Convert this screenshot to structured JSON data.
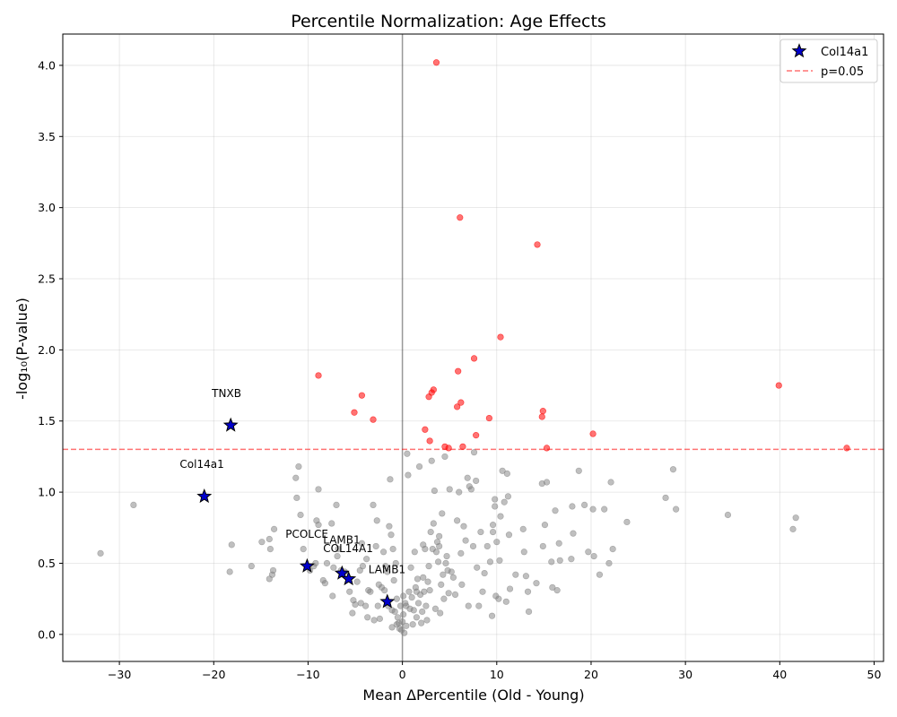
{
  "chart_data": {
    "type": "scatter",
    "title": "Percentile Normalization: Age Effects",
    "xlabel": "Mean ΔPercentile (Old - Young)",
    "ylabel": "-log₁₀(P-value)",
    "xlim": [
      -36,
      51
    ],
    "ylim": [
      -0.19,
      4.22
    ],
    "x_ticks": [
      -30,
      -20,
      -10,
      0,
      10,
      20,
      30,
      40,
      50
    ],
    "y_ticks": [
      0.0,
      0.5,
      1.0,
      1.5,
      2.0,
      2.5,
      3.0,
      3.5,
      4.0
    ],
    "x_tick_labels": [
      "−30",
      "−20",
      "−10",
      "0",
      "10",
      "20",
      "30",
      "40",
      "50"
    ],
    "y_tick_labels": [
      "0.0",
      "0.5",
      "1.0",
      "1.5",
      "2.0",
      "2.5",
      "3.0",
      "3.5",
      "4.0"
    ],
    "grid": true,
    "threshold": {
      "y": 1.301,
      "label": "p=0.05",
      "color": "#ff0000"
    },
    "zero_line_x": 0,
    "legend_position": "top-right",
    "colors": {
      "nonsig": "#808080",
      "sig": "#ff0000",
      "highlight": "#0000cc"
    },
    "series": [
      {
        "name": "",
        "role": "significant",
        "points": [
          [
            3.6,
            4.02
          ],
          [
            6.1,
            2.93
          ],
          [
            14.3,
            2.74
          ],
          [
            10.4,
            2.09
          ],
          [
            7.6,
            1.94
          ],
          [
            -8.9,
            1.82
          ],
          [
            5.9,
            1.85
          ],
          [
            39.9,
            1.75
          ],
          [
            3.3,
            1.72
          ],
          [
            3.1,
            1.7
          ],
          [
            2.8,
            1.67
          ],
          [
            -4.3,
            1.68
          ],
          [
            6.2,
            1.63
          ],
          [
            5.8,
            1.6
          ],
          [
            -5.1,
            1.56
          ],
          [
            14.9,
            1.57
          ],
          [
            14.8,
            1.53
          ],
          [
            9.2,
            1.52
          ],
          [
            -3.1,
            1.51
          ],
          [
            2.4,
            1.44
          ],
          [
            20.2,
            1.41
          ],
          [
            7.8,
            1.4
          ],
          [
            2.9,
            1.36
          ],
          [
            6.4,
            1.32
          ],
          [
            4.5,
            1.32
          ],
          [
            4.9,
            1.31
          ],
          [
            15.3,
            1.31
          ],
          [
            47.1,
            1.31
          ]
        ]
      },
      {
        "name": "",
        "role": "nonsignificant",
        "points": [
          [
            -32.0,
            0.57
          ],
          [
            -28.5,
            0.91
          ],
          [
            -18.1,
            0.63
          ],
          [
            -18.3,
            0.44
          ],
          [
            -16.0,
            0.48
          ],
          [
            -14.9,
            0.65
          ],
          [
            -14.1,
            0.67
          ],
          [
            -14.0,
            0.6
          ],
          [
            -14.1,
            0.39
          ],
          [
            -13.8,
            0.42
          ],
          [
            -13.7,
            0.45
          ],
          [
            -13.6,
            0.74
          ],
          [
            -11.2,
            0.96
          ],
          [
            -11.3,
            1.1
          ],
          [
            -11.0,
            1.18
          ],
          [
            -10.8,
            0.84
          ],
          [
            -10.5,
            0.6
          ],
          [
            -9.8,
            0.45
          ],
          [
            -9.4,
            0.48
          ],
          [
            -9.2,
            0.5
          ],
          [
            -9.1,
            0.8
          ],
          [
            -8.9,
            1.02
          ],
          [
            -8.9,
            0.77
          ],
          [
            -8.4,
            0.38
          ],
          [
            -8.2,
            0.36
          ],
          [
            -8.0,
            0.5
          ],
          [
            -7.5,
            0.78
          ],
          [
            -7.3,
            0.47
          ],
          [
            -7.4,
            0.27
          ],
          [
            -7.0,
            0.91
          ],
          [
            -6.8,
            0.6
          ],
          [
            -6.9,
            0.55
          ],
          [
            -6.5,
            0.45
          ],
          [
            -6.1,
            0.44
          ],
          [
            -5.6,
            0.3
          ],
          [
            -5.3,
            0.15
          ],
          [
            -5.2,
            0.24
          ],
          [
            -5.0,
            0.21
          ],
          [
            -4.8,
            0.37
          ],
          [
            -4.5,
            0.45
          ],
          [
            -4.4,
            0.22
          ],
          [
            -4.3,
            0.64
          ],
          [
            -4.2,
            0.48
          ],
          [
            -3.9,
            0.2
          ],
          [
            -3.7,
            0.12
          ],
          [
            -3.6,
            0.31
          ],
          [
            -3.4,
            0.3
          ],
          [
            -3.1,
            0.91
          ],
          [
            -3.0,
            0.1
          ],
          [
            -2.8,
            0.62
          ],
          [
            -2.7,
            0.8
          ],
          [
            -2.5,
            0.35
          ],
          [
            -2.4,
            0.11
          ],
          [
            -2.2,
            0.33
          ],
          [
            -2.0,
            0.58
          ],
          [
            -1.9,
            0.31
          ],
          [
            -1.8,
            0.48
          ],
          [
            -1.6,
            0.44
          ],
          [
            -1.5,
            0.2
          ],
          [
            -1.4,
            0.76
          ],
          [
            -1.3,
            1.09
          ],
          [
            -1.2,
            0.7
          ],
          [
            -1.1,
            0.05
          ],
          [
            -1.0,
            0.6
          ],
          [
            -0.9,
            0.38
          ],
          [
            -0.8,
            0.16
          ],
          [
            -0.7,
            0.5
          ],
          [
            -0.6,
            0.25
          ],
          [
            -0.5,
            0.12
          ],
          [
            -0.4,
            0.08
          ],
          [
            -0.3,
            0.04
          ],
          [
            -0.2,
            0.2
          ],
          [
            -0.1,
            0.03
          ],
          [
            0.0,
            0.09
          ],
          [
            0.1,
            0.14
          ],
          [
            0.2,
            0.01
          ],
          [
            0.3,
            0.22
          ],
          [
            0.4,
            0.06
          ],
          [
            0.5,
            1.27
          ],
          [
            0.6,
            1.12
          ],
          [
            0.7,
            0.3
          ],
          [
            0.8,
            0.18
          ],
          [
            0.9,
            0.47
          ],
          [
            1.0,
            0.26
          ],
          [
            1.1,
            0.07
          ],
          [
            1.2,
            0.17
          ],
          [
            1.3,
            0.58
          ],
          [
            1.4,
            0.33
          ],
          [
            1.5,
            0.12
          ],
          [
            1.6,
            0.39
          ],
          [
            1.7,
            0.22
          ],
          [
            1.8,
            1.18
          ],
          [
            1.9,
            0.28
          ],
          [
            2.0,
            0.08
          ],
          [
            2.1,
            0.16
          ],
          [
            2.2,
            0.63
          ],
          [
            2.3,
            0.3
          ],
          [
            2.4,
            0.6
          ],
          [
            2.5,
            0.2
          ],
          [
            2.6,
            0.1
          ],
          [
            2.7,
            0.37
          ],
          [
            2.8,
            0.48
          ],
          [
            2.9,
            0.31
          ],
          [
            3.0,
            0.72
          ],
          [
            3.1,
            1.22
          ],
          [
            3.2,
            0.6
          ],
          [
            3.3,
            0.78
          ],
          [
            3.4,
            1.01
          ],
          [
            3.5,
            0.18
          ],
          [
            3.6,
            0.58
          ],
          [
            3.7,
            0.65
          ],
          [
            3.8,
            0.51
          ],
          [
            3.9,
            0.69
          ],
          [
            4.0,
            0.15
          ],
          [
            4.1,
            0.35
          ],
          [
            4.2,
            0.85
          ],
          [
            4.3,
            0.42
          ],
          [
            4.4,
            0.25
          ],
          [
            4.5,
            1.25
          ],
          [
            4.6,
            0.5
          ],
          [
            4.8,
            0.45
          ],
          [
            4.9,
            0.29
          ],
          [
            5.0,
            1.02
          ],
          [
            5.2,
            0.44
          ],
          [
            5.4,
            0.4
          ],
          [
            5.6,
            0.28
          ],
          [
            5.8,
            0.8
          ],
          [
            6.0,
            1.0
          ],
          [
            6.2,
            0.57
          ],
          [
            6.3,
            0.35
          ],
          [
            6.5,
            0.76
          ],
          [
            6.7,
            0.66
          ],
          [
            6.9,
            1.1
          ],
          [
            7.0,
            0.2
          ],
          [
            7.1,
            1.04
          ],
          [
            7.3,
            1.02
          ],
          [
            7.5,
            0.62
          ],
          [
            7.6,
            1.28
          ],
          [
            7.8,
            1.08
          ],
          [
            7.9,
            0.47
          ],
          [
            8.1,
            0.2
          ],
          [
            8.3,
            0.72
          ],
          [
            8.5,
            0.3
          ],
          [
            8.7,
            0.43
          ],
          [
            9.0,
            0.62
          ],
          [
            9.3,
            0.51
          ],
          [
            9.5,
            0.13
          ],
          [
            9.6,
            0.77
          ],
          [
            9.8,
            0.95
          ],
          [
            9.9,
            0.27
          ],
          [
            10.0,
            0.65
          ],
          [
            10.2,
            0.25
          ],
          [
            10.3,
            0.52
          ],
          [
            10.4,
            0.83
          ],
          [
            10.6,
            1.15
          ],
          [
            10.8,
            0.93
          ],
          [
            11.0,
            0.23
          ],
          [
            11.1,
            1.13
          ],
          [
            11.2,
            0.97
          ],
          [
            11.3,
            0.7
          ],
          [
            11.4,
            0.32
          ],
          [
            12.0,
            0.42
          ],
          [
            12.8,
            0.74
          ],
          [
            12.9,
            0.58
          ],
          [
            13.1,
            0.41
          ],
          [
            13.3,
            0.3
          ],
          [
            13.4,
            0.16
          ],
          [
            14.2,
            0.36
          ],
          [
            14.8,
            1.06
          ],
          [
            14.9,
            0.62
          ],
          [
            15.1,
            0.77
          ],
          [
            15.3,
            1.07
          ],
          [
            15.8,
            0.51
          ],
          [
            15.9,
            0.33
          ],
          [
            16.2,
            0.87
          ],
          [
            16.4,
            0.31
          ],
          [
            16.6,
            0.64
          ],
          [
            16.7,
            0.52
          ],
          [
            17.9,
            0.53
          ],
          [
            18.0,
            0.9
          ],
          [
            18.1,
            0.71
          ],
          [
            18.7,
            1.15
          ],
          [
            19.3,
            0.91
          ],
          [
            19.7,
            0.58
          ],
          [
            20.2,
            0.88
          ],
          [
            20.3,
            0.55
          ],
          [
            20.9,
            0.42
          ],
          [
            21.4,
            0.88
          ],
          [
            21.9,
            0.5
          ],
          [
            22.1,
            1.07
          ],
          [
            22.3,
            0.6
          ],
          [
            23.8,
            0.79
          ],
          [
            27.9,
            0.96
          ],
          [
            28.7,
            1.16
          ],
          [
            29.0,
            0.88
          ],
          [
            34.5,
            0.84
          ],
          [
            41.4,
            0.74
          ],
          [
            41.7,
            0.82
          ],
          [
            9.6,
            0.72
          ],
          [
            9.8,
            0.9
          ],
          [
            4.7,
            0.55
          ],
          [
            3.9,
            0.62
          ],
          [
            2.2,
            0.4
          ],
          [
            1.5,
            0.3
          ],
          [
            0.4,
            0.2
          ],
          [
            0.1,
            0.27
          ],
          [
            -0.6,
            0.07
          ],
          [
            -1.1,
            0.17
          ],
          [
            -2.6,
            0.2
          ],
          [
            -3.8,
            0.53
          ]
        ]
      },
      {
        "name": "Col14a1",
        "role": "highlight",
        "points": [
          [
            -18.2,
            1.47
          ],
          [
            -21.0,
            0.97
          ],
          [
            -10.1,
            0.48
          ],
          [
            -6.4,
            0.43
          ],
          [
            -5.7,
            0.39
          ],
          [
            -1.6,
            0.23
          ]
        ],
        "labels": [
          {
            "text": "TNXB",
            "x": -20.2,
            "y": 1.67
          },
          {
            "text": "Col14a1",
            "x": -23.6,
            "y": 1.17
          },
          {
            "text": "PCOLCE",
            "x": -12.4,
            "y": 0.68
          },
          {
            "text": "LAMB1",
            "x": -8.4,
            "y": 0.64
          },
          {
            "text": "COL14A1",
            "x": -8.4,
            "y": 0.58
          },
          {
            "text": "LAMB1",
            "x": -3.6,
            "y": 0.43
          }
        ]
      }
    ]
  }
}
